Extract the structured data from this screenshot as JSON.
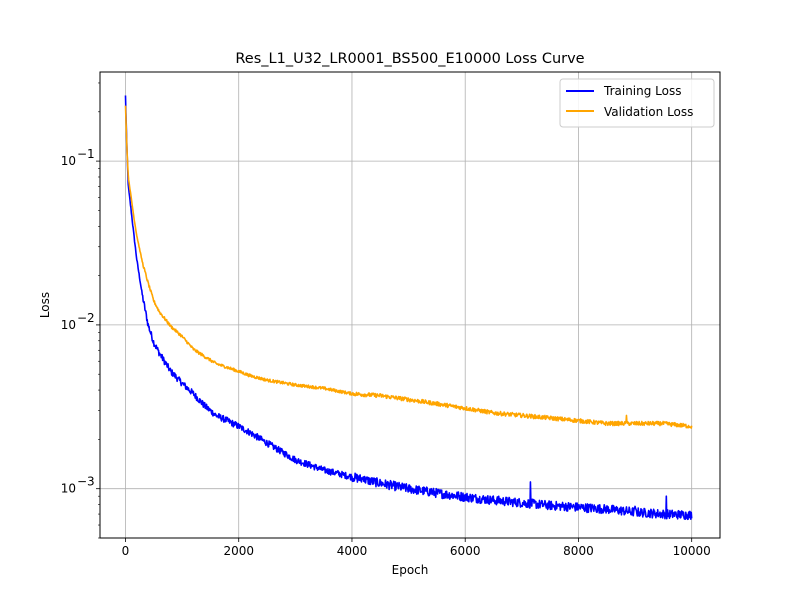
{
  "chart_data": {
    "type": "line",
    "title": "Res_L1_U32_LR0001_BS500_E10000 Loss Curve",
    "xlabel": "Epoch",
    "ylabel": "Loss",
    "yscale": "log",
    "xlim": [
      -450,
      10500
    ],
    "ylim": [
      0.0005,
      0.35
    ],
    "xticks": [
      0,
      2000,
      4000,
      6000,
      8000,
      10000
    ],
    "xtick_labels": [
      "0",
      "2000",
      "4000",
      "6000",
      "8000",
      "10000"
    ],
    "yticks": [
      0.001,
      0.01,
      0.1
    ],
    "ytick_labels": [
      "10",
      "10",
      "10"
    ],
    "ytick_exponents": [
      "−3",
      "−2",
      "−1"
    ],
    "grid": true,
    "legend_position": "top-right",
    "series": [
      {
        "name": "Training Loss",
        "color": "#0000ff",
        "noise": 0.04,
        "x": [
          0,
          25,
          50,
          100,
          150,
          200,
          300,
          400,
          500,
          600,
          800,
          1000,
          1200,
          1400,
          1600,
          1800,
          2000,
          2200,
          2500,
          3000,
          3500,
          4000,
          4500,
          5000,
          5500,
          6000,
          6500,
          7000,
          7500,
          8000,
          8500,
          9000,
          9500,
          10000
        ],
        "y": [
          0.25,
          0.12,
          0.07,
          0.05,
          0.035,
          0.025,
          0.015,
          0.01,
          0.0078,
          0.0067,
          0.0052,
          0.0044,
          0.0038,
          0.0032,
          0.0028,
          0.0026,
          0.0024,
          0.0022,
          0.0019,
          0.0015,
          0.0013,
          0.00118,
          0.00108,
          0.001,
          0.00094,
          0.00089,
          0.00085,
          0.00082,
          0.00079,
          0.00077,
          0.00075,
          0.00072,
          0.0007,
          0.00069
        ],
        "spikes": [
          [
            4200,
            0.00118
          ],
          [
            4900,
            0.0011
          ],
          [
            5400,
            0.001
          ],
          [
            6500,
            0.0011
          ],
          [
            7150,
            0.0011
          ],
          [
            8300,
            0.0008
          ],
          [
            9000,
            0.00078
          ],
          [
            9550,
            0.0009
          ]
        ]
      },
      {
        "name": "Validation Loss",
        "color": "#ffa500",
        "noise": 0.018,
        "x": [
          0,
          25,
          50,
          100,
          150,
          200,
          300,
          400,
          500,
          600,
          800,
          1000,
          1200,
          1400,
          1600,
          1800,
          2000,
          2200,
          2500,
          3000,
          3500,
          4000,
          4500,
          5000,
          5500,
          6000,
          6500,
          7000,
          7500,
          8000,
          8500,
          9000,
          9500,
          10000
        ],
        "y": [
          0.22,
          0.12,
          0.08,
          0.06,
          0.045,
          0.035,
          0.024,
          0.018,
          0.014,
          0.012,
          0.0098,
          0.0085,
          0.0071,
          0.0064,
          0.0058,
          0.0055,
          0.0052,
          0.0049,
          0.0046,
          0.0043,
          0.0041,
          0.0038,
          0.0037,
          0.0035,
          0.0033,
          0.0031,
          0.0029,
          0.0028,
          0.0027,
          0.0026,
          0.0025,
          0.0025,
          0.0025,
          0.0024
        ],
        "spikes": [
          [
            4300,
            0.0041
          ],
          [
            6500,
            0.0034
          ],
          [
            8850,
            0.0028
          ]
        ]
      }
    ]
  }
}
